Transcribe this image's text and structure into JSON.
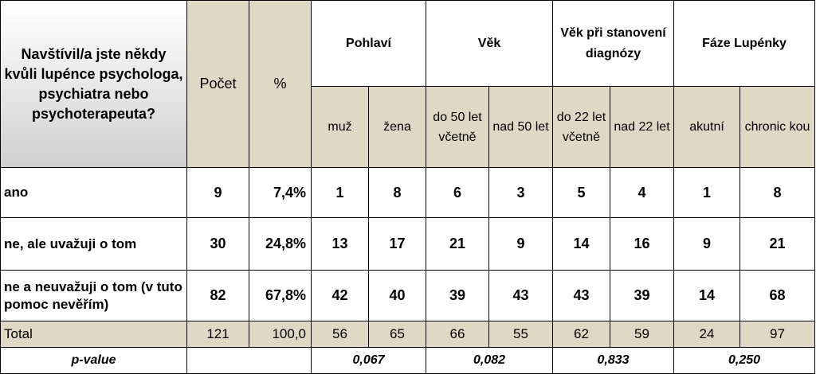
{
  "header": {
    "question": "Navštívil/a jste někdy kvůli lupénce psychologa, psychiatra nebo psychoterapeuta?",
    "count": "Počet",
    "percent": "%",
    "groups": [
      "Pohlaví",
      "Věk",
      "Věk při stanovení diagnózy",
      "Fáze Lupénky"
    ],
    "subgroups": [
      "muž",
      "žena",
      "do 50 let včetně",
      "nad 50 let",
      "do 22 let včetně",
      "nad 22 let",
      "akutní",
      "chronic kou"
    ]
  },
  "rows": [
    {
      "label": "ano",
      "count": "9",
      "percent": "7,4%",
      "values": [
        "1",
        "8",
        "6",
        "3",
        "5",
        "4",
        "1",
        "8"
      ]
    },
    {
      "label": "ne, ale uvažuji o tom",
      "count": "30",
      "percent": "24,8%",
      "values": [
        "13",
        "17",
        "21",
        "9",
        "14",
        "16",
        "9",
        "21"
      ]
    },
    {
      "label": "ne a neuvažuji o tom (v tuto pomoc nevěřím)",
      "count": "82",
      "percent": "67,8%",
      "values": [
        "42",
        "40",
        "39",
        "43",
        "43",
        "39",
        "14",
        "68"
      ]
    }
  ],
  "total": {
    "label": "Total",
    "count": "121",
    "percent": "100,0",
    "values": [
      "56",
      "65",
      "66",
      "55",
      "62",
      "59",
      "24",
      "97"
    ]
  },
  "pvalue": {
    "label": "p-value",
    "values": [
      "0,067",
      "0,082",
      "0,833",
      "0,250"
    ]
  }
}
